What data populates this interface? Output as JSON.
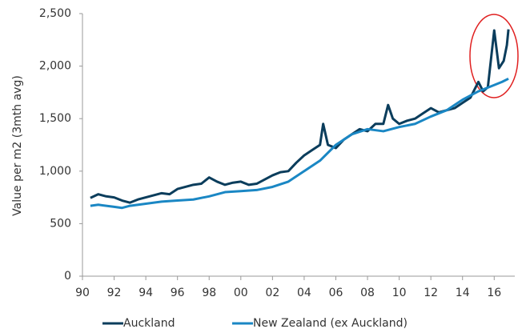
{
  "chart_data": {
    "type": "line",
    "y_label": "Value per m2 (3mth avg)",
    "xlim": [
      1990,
      2017.3
    ],
    "xticks": [
      {
        "value": 1990,
        "label": "90"
      },
      {
        "value": 1992,
        "label": "92"
      },
      {
        "value": 1994,
        "label": "94"
      },
      {
        "value": 1996,
        "label": "96"
      },
      {
        "value": 1998,
        "label": "98"
      },
      {
        "value": 2000,
        "label": "00"
      },
      {
        "value": 2002,
        "label": "02"
      },
      {
        "value": 2004,
        "label": "04"
      },
      {
        "value": 2006,
        "label": "06"
      },
      {
        "value": 2008,
        "label": "08"
      },
      {
        "value": 2010,
        "label": "10"
      },
      {
        "value": 2012,
        "label": "12"
      },
      {
        "value": 2014,
        "label": "14"
      },
      {
        "value": 2016,
        "label": "16"
      }
    ],
    "ylim": [
      0,
      2500
    ],
    "yticks": [
      0,
      500,
      {
        "value": 1000,
        "label": "1,000"
      },
      {
        "value": 1500,
        "label": "1,500"
      },
      {
        "value": 2000,
        "label": "2,000"
      },
      {
        "value": 2500,
        "label": "2,500"
      }
    ],
    "grid": false,
    "legend": "bottom",
    "series": [
      {
        "name": "Auckland",
        "color": "#0b3d5c",
        "x": [
          1990.5,
          1991,
          1991.5,
          1992,
          1992.5,
          1993,
          1993.5,
          1994,
          1994.5,
          1995,
          1995.5,
          1996,
          1996.5,
          1997,
          1997.5,
          1998,
          1998.5,
          1999,
          1999.5,
          2000,
          2000.5,
          2001,
          2001.5,
          2002,
          2002.5,
          2003,
          2003.5,
          2004,
          2004.5,
          2005,
          2005.2,
          2005.5,
          2006,
          2006.5,
          2007,
          2007.5,
          2008,
          2008.5,
          2009,
          2009.3,
          2009.6,
          2010,
          2010.5,
          2011,
          2011.5,
          2012,
          2012.5,
          2013,
          2013.5,
          2014,
          2014.5,
          2015,
          2015.3,
          2015.6,
          2016,
          2016.3,
          2016.6,
          2016.8,
          2016.9
        ],
        "values": [
          745,
          780,
          760,
          750,
          720,
          700,
          730,
          750,
          770,
          790,
          780,
          830,
          850,
          870,
          880,
          940,
          900,
          870,
          890,
          900,
          870,
          880,
          920,
          960,
          990,
          1000,
          1080,
          1150,
          1200,
          1250,
          1450,
          1250,
          1220,
          1300,
          1350,
          1400,
          1380,
          1450,
          1450,
          1630,
          1500,
          1450,
          1480,
          1500,
          1550,
          1600,
          1560,
          1580,
          1600,
          1650,
          1700,
          1850,
          1760,
          1800,
          2340,
          1980,
          2050,
          2200,
          2350
        ]
      },
      {
        "name": "New Zealand (ex Auckland)",
        "color": "#1a87c4",
        "x": [
          1990.5,
          1991,
          1992,
          1992.5,
          1993,
          1994,
          1995,
          1996,
          1997,
          1998,
          1999,
          2000,
          2001,
          2002,
          2003,
          2004,
          2005,
          2006,
          2007,
          2008,
          2009,
          2010,
          2011,
          2012,
          2013,
          2014,
          2015,
          2016,
          2016.5,
          2016.9
        ],
        "values": [
          670,
          680,
          660,
          650,
          670,
          690,
          710,
          720,
          730,
          760,
          800,
          810,
          820,
          850,
          900,
          1000,
          1100,
          1250,
          1350,
          1400,
          1380,
          1420,
          1450,
          1520,
          1580,
          1680,
          1760,
          1820,
          1850,
          1880
        ]
      }
    ]
  }
}
